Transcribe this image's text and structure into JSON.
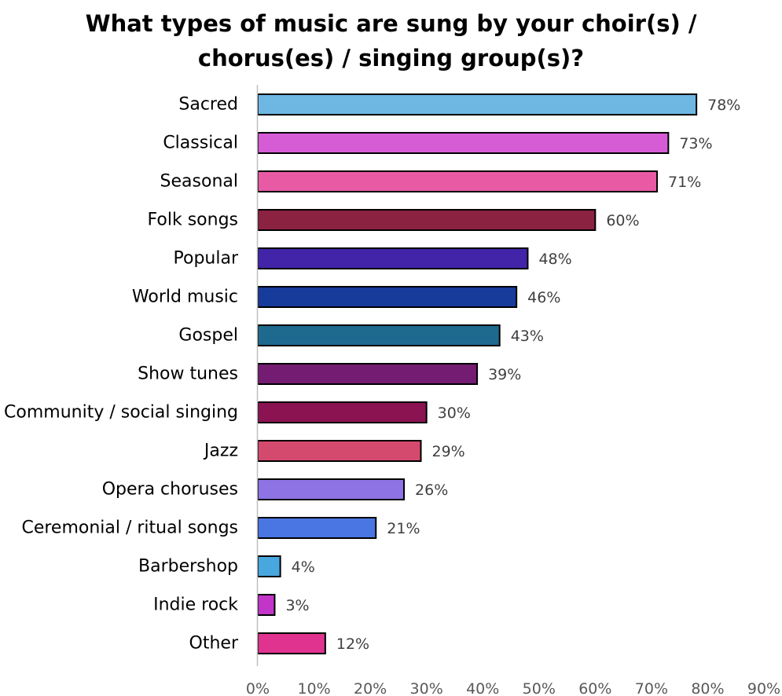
{
  "chart_data": {
    "type": "bar",
    "orientation": "horizontal",
    "title": "What types of music are sung by your choir(s) /\nchorus(es) / singing group(s)?",
    "categories": [
      "Sacred",
      "Classical",
      "Seasonal",
      "Folk songs",
      "Popular",
      "World music",
      "Gospel",
      "Show tunes",
      "Community / social singing",
      "Jazz",
      "Opera choruses",
      "Ceremonial / ritual songs",
      "Barbershop",
      "Indie rock",
      "Other"
    ],
    "values": [
      78,
      73,
      71,
      60,
      48,
      46,
      43,
      39,
      30,
      29,
      26,
      21,
      4,
      3,
      12
    ],
    "colors": [
      "#6db7e2",
      "#d65cd6",
      "#e95aa5",
      "#8b2241",
      "#4124a8",
      "#163b9a",
      "#1e6a8f",
      "#741c72",
      "#8c1352",
      "#d44a6e",
      "#8e73e4",
      "#4a76e4",
      "#49a7e0",
      "#c235c8",
      "#e0338f"
    ],
    "value_format": "percent",
    "xlim": [
      0,
      90
    ],
    "xticks": [
      0,
      10,
      20,
      30,
      40,
      50,
      60,
      70,
      80,
      90
    ],
    "grid": false,
    "legend": "none"
  }
}
